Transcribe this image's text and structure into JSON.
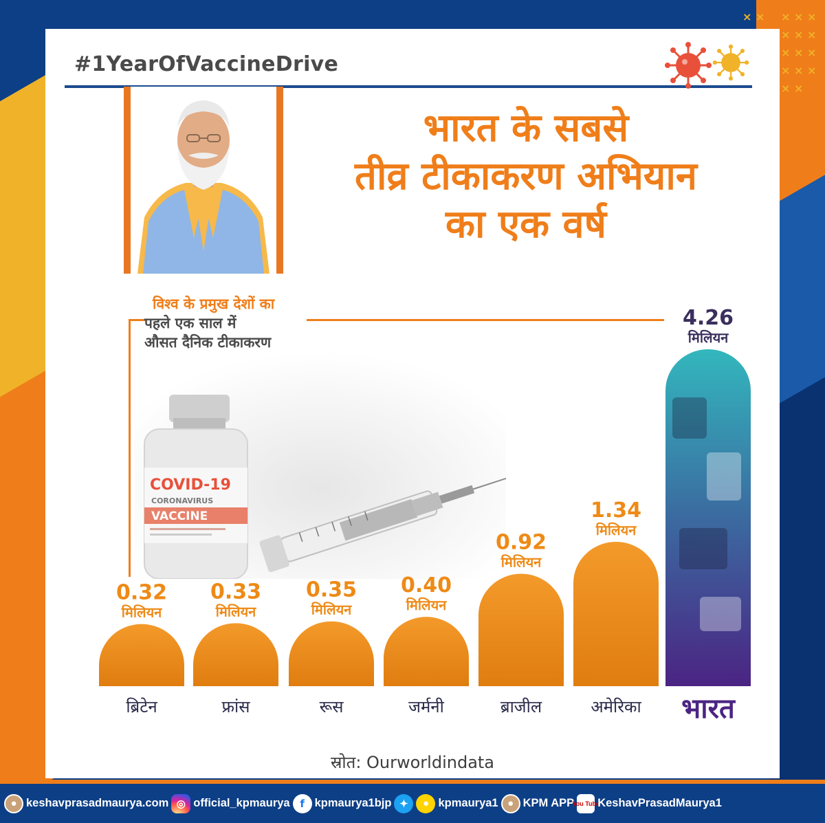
{
  "hashtag": "#1YearOfVaccineDrive",
  "headline": {
    "line1": "भारत के सबसे",
    "line2": "तीव्र टीकाकरण अभियान",
    "line3": "का एक वर्ष"
  },
  "subhead": {
    "line1": "विश्व के प्रमुख देशों का",
    "line2": "पहले एक साल में",
    "line3": "औसत दैनिक टीकाकरण"
  },
  "vial": {
    "brand": "COVID-19",
    "sub": "CORONAVIRUS",
    "band": "VACCINE"
  },
  "source": "स्रोत: Ourworldindata",
  "colors": {
    "orange": "#ef7e1a",
    "bar_orange": "#ee8a16",
    "india_top": "#2fb3b9",
    "india_bottom": "#4b2483",
    "navy": "#0d3f86",
    "label_dark": "#3a2f5d"
  },
  "chart_data": {
    "type": "bar",
    "categories": [
      "ब्रिटेन",
      "फ्रांस",
      "रूस",
      "जर्मनी",
      "ब्राजील",
      "अमेरिका",
      "भारत"
    ],
    "values": [
      0.32,
      0.33,
      0.35,
      0.4,
      0.92,
      1.34,
      4.26
    ],
    "value_labels": [
      "0.32",
      "0.33",
      "0.35",
      "0.40",
      "0.92",
      "1.34",
      "4.26"
    ],
    "unit_label": "मिलियन",
    "highlight": "भारत"
  },
  "footer": {
    "website": "keshavprasadmaurya.com",
    "instagram": "official_kpmaurya",
    "facebook": "kpmaurya1bjp",
    "twitter_koo": "kpmaurya1",
    "app": "KPM APP",
    "youtube_badge": "You Tube",
    "youtube": "KeshavPrasadMaurya1"
  }
}
